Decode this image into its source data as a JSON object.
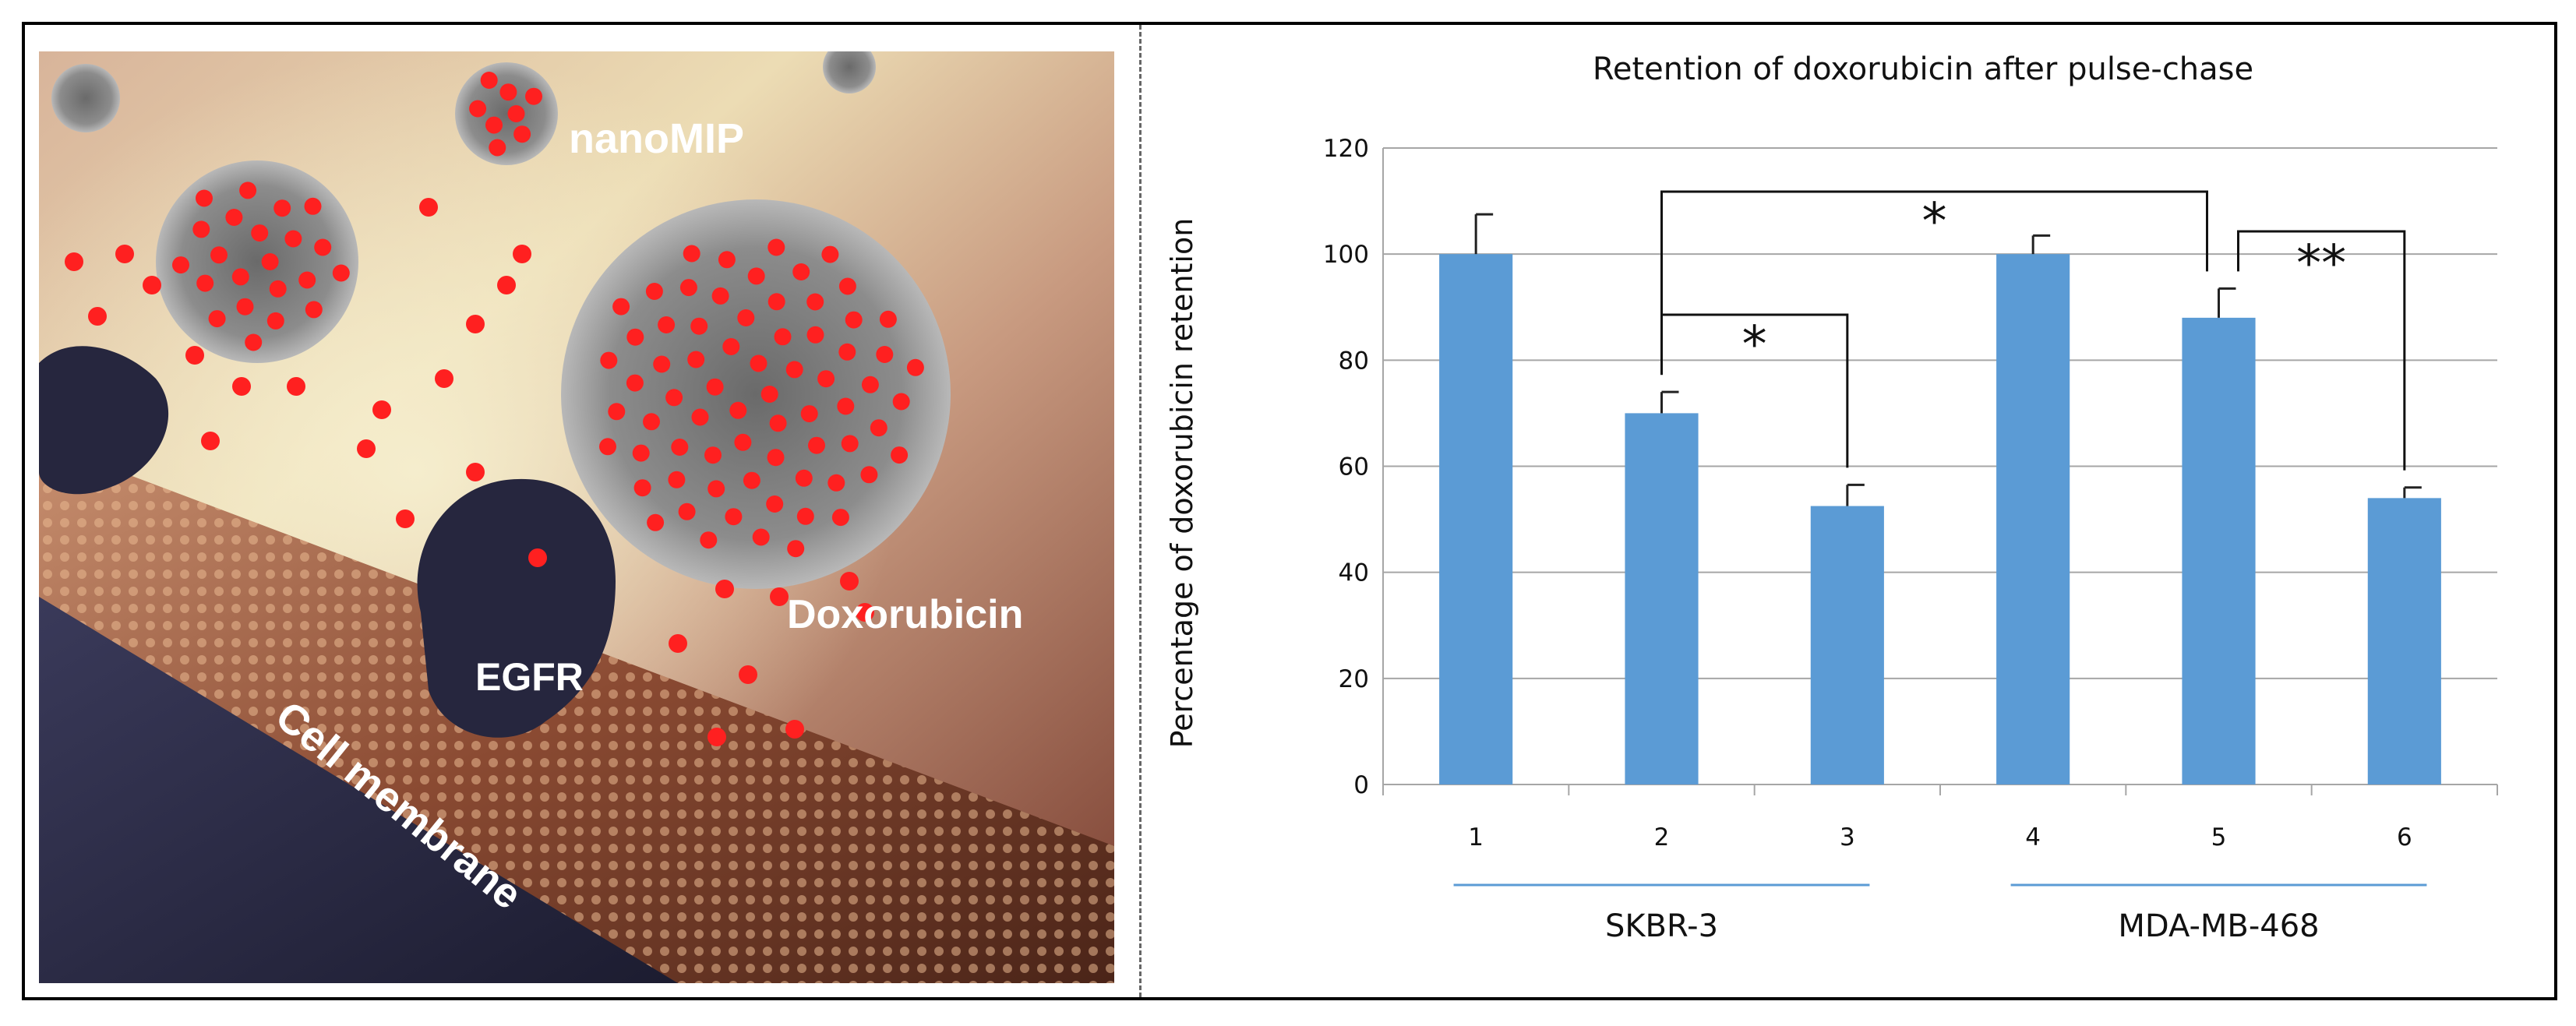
{
  "colors": {
    "bar": "#5b9bd5",
    "grid": "#a6a6a6",
    "group_line": "#5b9bd5",
    "drug_dot": "#ff2020"
  },
  "illustration": {
    "labels": {
      "nanomip": "nanoMIP",
      "doxorubicin": "Doxorubicin",
      "egfr": "EGFR",
      "membrane": "Cell membrane"
    }
  },
  "chart_data": {
    "type": "bar",
    "title": "Retention of doxorubicin after pulse-chase",
    "xlabel": "",
    "ylabel": "Percentage of doxorubicin retention",
    "categories": [
      "1",
      "2",
      "3",
      "4",
      "5",
      "6"
    ],
    "values": [
      100,
      70,
      52.5,
      100,
      88,
      54
    ],
    "error": [
      7.5,
      4,
      4,
      3.5,
      5.5,
      2
    ],
    "ylim": [
      0,
      120
    ],
    "yticks": [
      "0",
      "20",
      "40",
      "60",
      "80",
      "100",
      "120"
    ],
    "grid": true,
    "groups": [
      {
        "label": "SKBR-3",
        "from": 0,
        "to": 2
      },
      {
        "label": "MDA-MB-468",
        "from": 3,
        "to": 5
      }
    ],
    "significance": [
      {
        "a": 1,
        "b": 2,
        "label": "*"
      },
      {
        "a": 1,
        "b": 4,
        "label": "*"
      },
      {
        "a": 4,
        "b": 5,
        "label": "**"
      }
    ]
  }
}
